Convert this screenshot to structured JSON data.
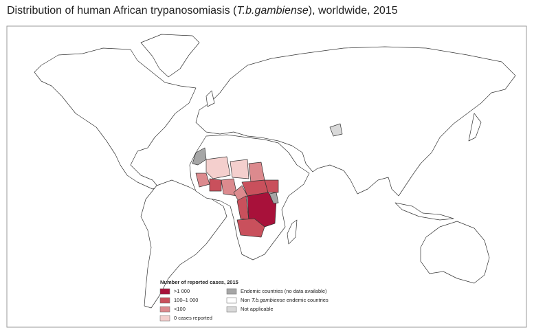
{
  "header": {
    "title": [
      "Distribution of human African trypanosomiasis (",
      "T.b.gambiense",
      "), worldwide, 2015"
    ]
  },
  "legend": {
    "title": "Number of reported cases, 2015",
    "items": [
      {
        "label": ">1 000",
        "color": "#a8113a"
      },
      {
        "label": "100–1 000",
        "color": "#c9505c"
      },
      {
        "label": "<100",
        "color": "#dc8a8e"
      },
      {
        "label": "0 cases reported",
        "color": "#f4cfcd"
      },
      {
        "label": "Endemic countries (no data available)",
        "color": "#a6a6a6"
      },
      {
        "label": [
          "Non ",
          "T.b.gambiense",
          " endemic countries"
        ],
        "color": "#ffffff"
      },
      {
        "label": "Not applicable",
        "color": "#d9d9d9"
      }
    ]
  }
}
